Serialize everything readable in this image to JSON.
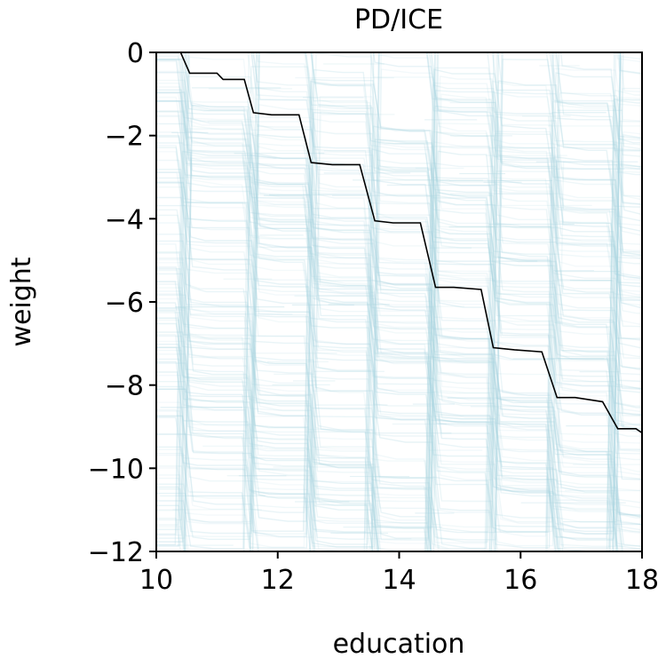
{
  "chart_data": {
    "type": "line",
    "title": "PD/ICE",
    "xlabel": "education",
    "ylabel": "weight",
    "xlim": [
      10,
      18
    ],
    "ylim": [
      -12,
      0
    ],
    "xticks": [
      10,
      12,
      14,
      16,
      18
    ],
    "yticks": [
      0,
      -2,
      -4,
      -6,
      -8,
      -10,
      -12
    ],
    "xtick_labels": [
      "10",
      "12",
      "14",
      "16",
      "18"
    ],
    "ytick_labels": [
      "0",
      "−2",
      "−4",
      "−6",
      "−8",
      "−10",
      "−12"
    ],
    "grid": false,
    "colors": {
      "ice": "#a8d4e0",
      "pd": "#000000"
    },
    "series": [
      {
        "kind": "ice",
        "description_count_shown": "many",
        "step_x": [
          10.4,
          11.5,
          12.5,
          13.5,
          14.5,
          15.5,
          16.5,
          17.5
        ],
        "step_drop": 1.4
      },
      {
        "kind": "pd",
        "x": [
          10.4,
          10.55,
          11.0,
          11.1,
          11.45,
          11.6,
          11.9,
          12.35,
          12.55,
          12.9,
          13.35,
          13.6,
          13.9,
          14.35,
          14.6,
          14.9,
          15.35,
          15.55,
          15.9,
          16.35,
          16.6,
          16.9,
          17.35,
          17.6,
          17.9,
          18.0
        ],
        "y": [
          0.0,
          -0.5,
          -0.5,
          -0.65,
          -0.65,
          -1.45,
          -1.5,
          -1.5,
          -2.65,
          -2.7,
          -2.7,
          -4.05,
          -4.1,
          -4.1,
          -5.65,
          -5.65,
          -5.7,
          -7.1,
          -7.15,
          -7.2,
          -8.3,
          -8.3,
          -8.4,
          -9.05,
          -9.05,
          -9.15
        ]
      }
    ]
  }
}
